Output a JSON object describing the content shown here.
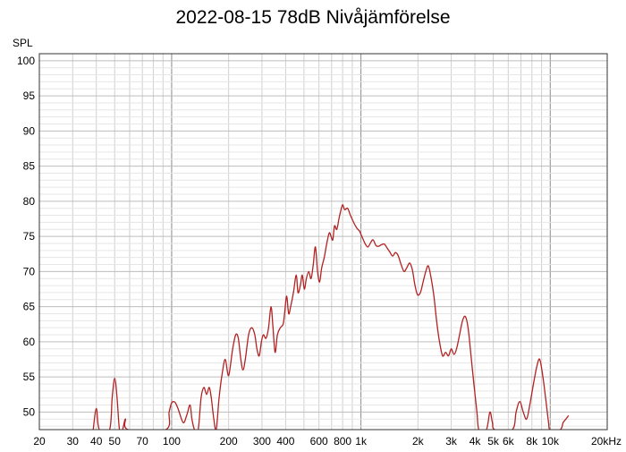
{
  "chart_data": {
    "type": "line",
    "title": "2022-08-15 78dB Nivåjämförelse",
    "ylabel": "SPL",
    "xlabel": "",
    "x_scale": "log",
    "xlim": [
      20,
      20000
    ],
    "ylim": [
      47.5,
      101
    ],
    "grid": true,
    "y_ticks": [
      50,
      55,
      60,
      65,
      70,
      75,
      80,
      85,
      90,
      95,
      100
    ],
    "x_ticks": [
      {
        "value": 20,
        "label": "20"
      },
      {
        "value": 30,
        "label": "30"
      },
      {
        "value": 40,
        "label": "40"
      },
      {
        "value": 50,
        "label": "50"
      },
      {
        "value": 70,
        "label": "70"
      },
      {
        "value": 100,
        "label": "100"
      },
      {
        "value": 200,
        "label": "200"
      },
      {
        "value": 300,
        "label": "300"
      },
      {
        "value": 400,
        "label": "400"
      },
      {
        "value": 600,
        "label": "600"
      },
      {
        "value": 800,
        "label": "800"
      },
      {
        "value": 1000,
        "label": "1k"
      },
      {
        "value": 2000,
        "label": "2k"
      },
      {
        "value": 3000,
        "label": "3k"
      },
      {
        "value": 4000,
        "label": "4k"
      },
      {
        "value": 5000,
        "label": "5k"
      },
      {
        "value": 6000,
        "label": "6k"
      },
      {
        "value": 8000,
        "label": "8k"
      },
      {
        "value": 10000,
        "label": "10k"
      },
      {
        "value": 20000,
        "label": "20kHz"
      }
    ],
    "series": [
      {
        "color": "#b22222",
        "points": [
          [
            38.5,
            47.5
          ],
          [
            40,
            50.5
          ],
          [
            41.5,
            47.5
          ],
          [
            47,
            47.5
          ],
          [
            48.5,
            52
          ],
          [
            50,
            54.8
          ],
          [
            51.5,
            52
          ],
          [
            53,
            47.5
          ],
          [
            55,
            47.5
          ],
          [
            57,
            49
          ],
          [
            59,
            47.5
          ],
          [
            93,
            47.5
          ],
          [
            97,
            50
          ],
          [
            100,
            51.3
          ],
          [
            104,
            51.4
          ],
          [
            108,
            50.5
          ],
          [
            115,
            48.5
          ],
          [
            120,
            49.5
          ],
          [
            125,
            51
          ],
          [
            128,
            49
          ],
          [
            132,
            47.5
          ],
          [
            138,
            47.5
          ],
          [
            143,
            52
          ],
          [
            148,
            53.5
          ],
          [
            153,
            52.5
          ],
          [
            158,
            53.5
          ],
          [
            162,
            52
          ],
          [
            167,
            49
          ],
          [
            172,
            47.5
          ],
          [
            178,
            52
          ],
          [
            185,
            55.5
          ],
          [
            192,
            57.5
          ],
          [
            200,
            55.2
          ],
          [
            210,
            59
          ],
          [
            218,
            61
          ],
          [
            225,
            60.5
          ],
          [
            232,
            57.5
          ],
          [
            238,
            56
          ],
          [
            245,
            57.5
          ],
          [
            255,
            61
          ],
          [
            265,
            62
          ],
          [
            275,
            61
          ],
          [
            282,
            59
          ],
          [
            290,
            58
          ],
          [
            298,
            60
          ],
          [
            305,
            61
          ],
          [
            315,
            60.5
          ],
          [
            325,
            62
          ],
          [
            335,
            65
          ],
          [
            343,
            62
          ],
          [
            352,
            58.5
          ],
          [
            362,
            61
          ],
          [
            375,
            62
          ],
          [
            388,
            62.5
          ],
          [
            395,
            64
          ],
          [
            405,
            66.5
          ],
          [
            415,
            64
          ],
          [
            425,
            65
          ],
          [
            440,
            67
          ],
          [
            455,
            69.5
          ],
          [
            465,
            67
          ],
          [
            478,
            68
          ],
          [
            490,
            69.5
          ],
          [
            502,
            67.5
          ],
          [
            515,
            69
          ],
          [
            530,
            70
          ],
          [
            545,
            69
          ],
          [
            560,
            71
          ],
          [
            575,
            73.5
          ],
          [
            590,
            70
          ],
          [
            605,
            68.5
          ],
          [
            620,
            70.5
          ],
          [
            640,
            72
          ],
          [
            660,
            74
          ],
          [
            680,
            75.5
          ],
          [
            695,
            75
          ],
          [
            710,
            74.5
          ],
          [
            725,
            76.5
          ],
          [
            745,
            76
          ],
          [
            765,
            77.5
          ],
          [
            780,
            78.5
          ],
          [
            800,
            79.5
          ],
          [
            820,
            78.8
          ],
          [
            850,
            79
          ],
          [
            880,
            78
          ],
          [
            915,
            77
          ],
          [
            950,
            76.2
          ],
          [
            980,
            75.8
          ],
          [
            1000,
            75.3
          ],
          [
            1030,
            74.5
          ],
          [
            1060,
            73.8
          ],
          [
            1090,
            73.5
          ],
          [
            1130,
            74.2
          ],
          [
            1160,
            74.5
          ],
          [
            1200,
            73.7
          ],
          [
            1240,
            73.6
          ],
          [
            1280,
            73.8
          ],
          [
            1330,
            73.9
          ],
          [
            1370,
            73.4
          ],
          [
            1420,
            72.8
          ],
          [
            1470,
            72.2
          ],
          [
            1520,
            72.7
          ],
          [
            1570,
            72.3
          ],
          [
            1630,
            71
          ],
          [
            1690,
            70
          ],
          [
            1750,
            70.6
          ],
          [
            1810,
            71.2
          ],
          [
            1870,
            70.2
          ],
          [
            1930,
            68
          ],
          [
            1990,
            66.7
          ],
          [
            2060,
            67
          ],
          [
            2130,
            68.5
          ],
          [
            2200,
            70
          ],
          [
            2270,
            70.8
          ],
          [
            2350,
            69
          ],
          [
            2430,
            66.5
          ],
          [
            2510,
            63
          ],
          [
            2600,
            60
          ],
          [
            2700,
            58
          ],
          [
            2800,
            58.5
          ],
          [
            2900,
            58
          ],
          [
            3000,
            59
          ],
          [
            3100,
            58.2
          ],
          [
            3200,
            59
          ],
          [
            3320,
            61
          ],
          [
            3440,
            63
          ],
          [
            3560,
            63.6
          ],
          [
            3680,
            62
          ],
          [
            3800,
            58.5
          ],
          [
            3950,
            54
          ],
          [
            4100,
            50
          ],
          [
            4200,
            47.5
          ],
          [
            4600,
            47.5
          ],
          [
            4800,
            50
          ],
          [
            4950,
            48.5
          ],
          [
            5100,
            47.5
          ],
          [
            6300,
            47.5
          ],
          [
            6600,
            50
          ],
          [
            6900,
            51.5
          ],
          [
            7200,
            50
          ],
          [
            7500,
            49
          ],
          [
            7800,
            51
          ],
          [
            8150,
            54
          ],
          [
            8500,
            56.5
          ],
          [
            8800,
            57.5
          ],
          [
            9150,
            55
          ],
          [
            9500,
            51.5
          ],
          [
            9800,
            48.5
          ],
          [
            10000,
            47.5
          ],
          [
            11300,
            47.5
          ],
          [
            11700,
            48.5
          ],
          [
            12100,
            49
          ],
          [
            12500,
            49.5
          ]
        ]
      }
    ]
  }
}
